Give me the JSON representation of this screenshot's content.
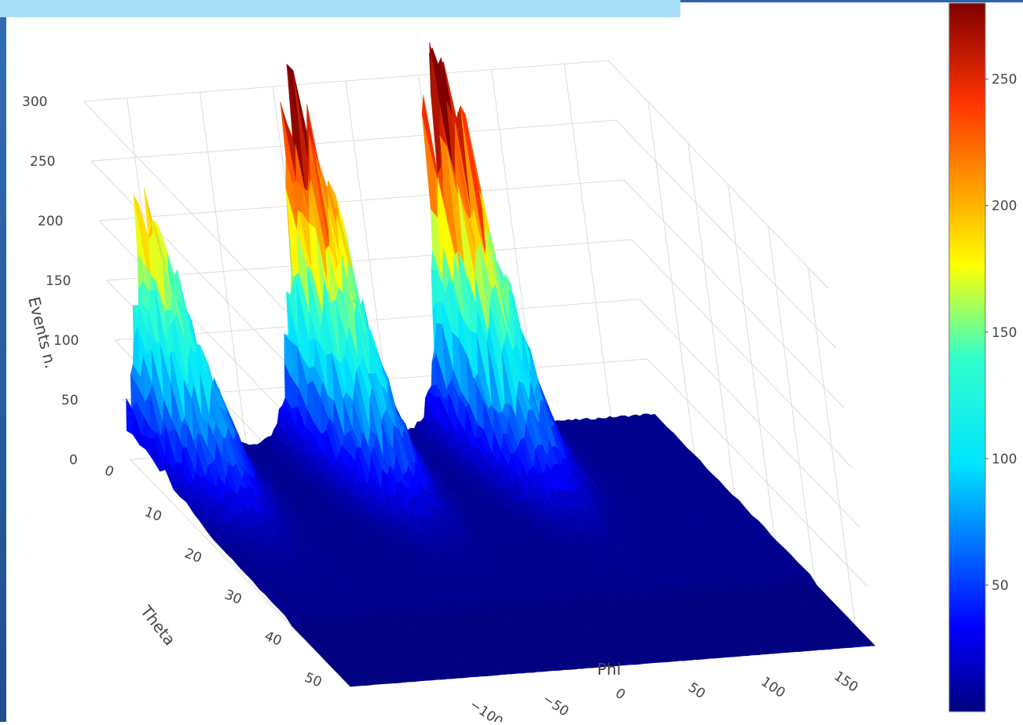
{
  "chart_data": {
    "type": "surface",
    "x_axis": {
      "label": "Phi",
      "ticks": [
        -100,
        -50,
        0,
        50,
        100,
        150
      ]
    },
    "y_axis": {
      "label": "Theta",
      "ticks": [
        0,
        10,
        20,
        30,
        40,
        50
      ]
    },
    "z_axis": {
      "label": "Events n.",
      "ticks": [
        0,
        50,
        100,
        150,
        200,
        250,
        300
      ],
      "range": [
        0,
        300
      ]
    },
    "colorbar": {
      "ticks": [
        50,
        100,
        150,
        200,
        250
      ],
      "range": [
        0,
        280
      ],
      "colorscale": "jet"
    },
    "peaks": [
      {
        "phi": -150,
        "theta": 5,
        "events": 180
      },
      {
        "phi": -40,
        "theta": 5,
        "events": 265
      },
      {
        "phi": 60,
        "theta": 5,
        "events": 280
      }
    ]
  }
}
